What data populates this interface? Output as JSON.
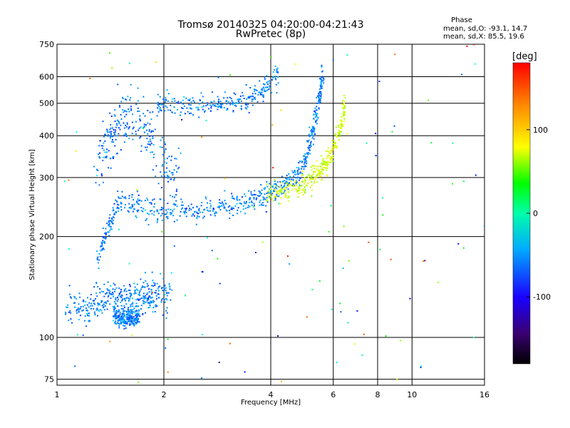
{
  "chart_data": {
    "type": "scatter",
    "title": "Tromsø 20140325 04:20:00-04:21:43",
    "subtitle": "RwPretec (8p)",
    "xlabel": "Frequency [MHz]",
    "ylabel": "Stationary phase Virtual Height [km]",
    "x_scale": "log",
    "y_scale": "log",
    "xlim": [
      1,
      16
    ],
    "ylim": [
      72,
      750
    ],
    "x_ticks": [
      1,
      2,
      4,
      6,
      8,
      10,
      16
    ],
    "y_ticks": [
      75,
      100,
      200,
      300,
      400,
      500,
      600,
      750
    ],
    "grid": true,
    "stats": {
      "heading": "Phase",
      "line_o": "mean, sd,O: -93.1, 14.7",
      "line_x": "mean, sd,X:  85.5, 19.6"
    },
    "colorbar": {
      "label": "[deg]",
      "range": [
        -180,
        180
      ],
      "ticks": [
        100,
        0,
        -100
      ]
    },
    "traces": [
      {
        "id": "F1_lower_O",
        "x": [
          1.3,
          1.4,
          1.5,
          1.7,
          2.0,
          2.4,
          2.8,
          3.2,
          3.6,
          4.0,
          4.4,
          4.8,
          5.1,
          5.3,
          5.5,
          5.6
        ],
        "y": [
          170,
          215,
          260,
          245,
          236,
          238,
          242,
          248,
          258,
          270,
          285,
          310,
          360,
          430,
          520,
          620
        ],
        "phase": -100,
        "spread": 0.012
      },
      {
        "id": "F1_upper_O",
        "x": [
          1.3,
          1.4,
          1.5,
          1.6,
          1.8,
          2.0,
          2.2
        ],
        "y": [
          330,
          390,
          440,
          470,
          410,
          330,
          290
        ],
        "phase": -105,
        "spread": 0.03
      },
      {
        "id": "F2_O",
        "x": [
          1.9,
          2.2,
          2.6,
          3.0,
          3.4,
          3.8,
          4.2
        ],
        "y": [
          505,
          495,
          490,
          495,
          510,
          545,
          600
        ],
        "phase": -100,
        "spread": 0.012
      },
      {
        "id": "F_X",
        "x": [
          3.9,
          4.4,
          4.9,
          5.3,
          5.6,
          5.9,
          6.3,
          6.5
        ],
        "y": [
          268,
          272,
          285,
          300,
          320,
          350,
          420,
          500
        ],
        "phase": 85,
        "spread": 0.012
      },
      {
        "id": "E_low",
        "x": [
          1.05,
          1.2,
          1.3,
          1.4,
          1.5,
          1.6,
          1.7,
          1.8,
          1.9,
          2.1
        ],
        "y": [
          125,
          120,
          128,
          132,
          130,
          128,
          131,
          133,
          132,
          133
        ],
        "phase": -100,
        "spread": 0.02
      },
      {
        "id": "Es_low",
        "x": [
          1.45,
          1.5,
          1.55,
          1.6,
          1.65,
          1.7
        ],
        "y": [
          116,
          114,
          113,
          115,
          114,
          116
        ],
        "phase": -100,
        "spread": 0.01
      }
    ],
    "noise_points": 120
  }
}
